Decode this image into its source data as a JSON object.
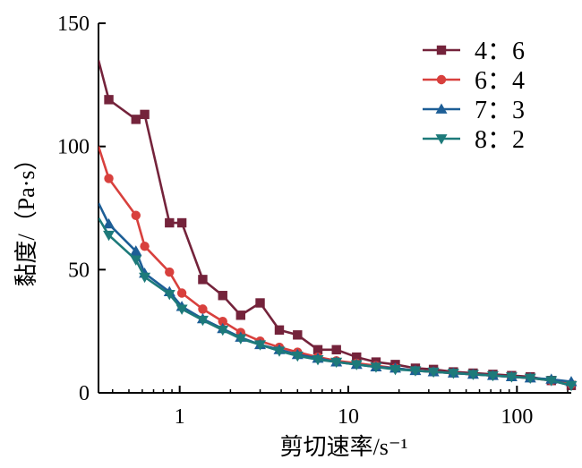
{
  "chart_data": {
    "type": "line",
    "xscale": "log",
    "xlim": [
      0.33,
      210
    ],
    "ylim": [
      0,
      150
    ],
    "xlabel": "剪切速率/s⁻¹",
    "ylabel": "黏度/（Pa·s）",
    "xticks": [
      {
        "value": 1,
        "label": "1"
      },
      {
        "value": 10,
        "label": "10"
      },
      {
        "value": 100,
        "label": "100"
      }
    ],
    "yticks": [
      {
        "value": 0,
        "label": "0"
      },
      {
        "value": 50,
        "label": "50"
      },
      {
        "value": 100,
        "label": "100"
      },
      {
        "value": 150,
        "label": "150"
      }
    ],
    "legend_position": "top-right",
    "series": [
      {
        "name": "4：6",
        "color": "#74233b",
        "marker": "square",
        "x": [
          0.33,
          0.38,
          0.55,
          0.62,
          0.87,
          1.03,
          1.37,
          1.8,
          2.3,
          3.0,
          3.9,
          5.0,
          6.6,
          8.5,
          11.2,
          14.6,
          19,
          25,
          32,
          42,
          55,
          72,
          93,
          120,
          160,
          210
        ],
        "y": [
          135,
          119,
          111,
          113,
          69,
          69,
          46,
          39.5,
          31.5,
          36.5,
          25.5,
          23.5,
          17.5,
          17.5,
          14.5,
          12.5,
          11.5,
          10,
          9.5,
          8.5,
          8,
          7.5,
          7,
          6.5,
          5,
          3
        ]
      },
      {
        "name": "6：4",
        "color": "#d8403d",
        "marker": "circle",
        "x": [
          0.33,
          0.38,
          0.55,
          0.62,
          0.87,
          1.03,
          1.37,
          1.8,
          2.3,
          3.0,
          3.9,
          5.0,
          6.6,
          8.5,
          11.2,
          14.6,
          19,
          25,
          32,
          42,
          55,
          72,
          93,
          120,
          160,
          210
        ],
        "y": [
          100,
          87,
          72,
          59.5,
          49,
          40.5,
          34,
          29,
          24.5,
          21,
          18.5,
          16.5,
          14.5,
          13,
          12,
          11,
          10,
          9,
          8.5,
          8,
          7.5,
          7,
          6.5,
          6,
          5,
          3.5
        ]
      },
      {
        "name": "7：3",
        "color": "#1d5e96",
        "marker": "triangle-up",
        "x": [
          0.33,
          0.38,
          0.55,
          0.62,
          0.87,
          1.03,
          1.37,
          1.8,
          2.3,
          3.0,
          3.9,
          5.0,
          6.6,
          8.5,
          11.2,
          14.6,
          19,
          25,
          32,
          42,
          55,
          72,
          93,
          120,
          160,
          210
        ],
        "y": [
          77,
          68.5,
          57.5,
          48.5,
          41,
          35,
          30,
          26,
          22.5,
          19.5,
          17.5,
          15.5,
          14,
          12.5,
          11.5,
          10.5,
          10,
          9,
          8.5,
          8,
          7.5,
          7,
          6.5,
          6,
          5.5,
          4.5
        ]
      },
      {
        "name": "8：2",
        "color": "#1d7a7a",
        "marker": "triangle-down",
        "x": [
          0.33,
          0.38,
          0.55,
          0.62,
          0.87,
          1.03,
          1.37,
          1.8,
          2.3,
          3.0,
          3.9,
          5.0,
          6.6,
          8.5,
          11.2,
          14.6,
          19,
          25,
          32,
          42,
          55,
          72,
          93,
          120,
          160,
          210
        ],
        "y": [
          71,
          64,
          54,
          47,
          40,
          34,
          29.5,
          25.5,
          22,
          19.5,
          17,
          15,
          13.5,
          12.5,
          11.5,
          10.5,
          9.5,
          9,
          8.5,
          8,
          7.5,
          7,
          6.5,
          6,
          5,
          3
        ]
      }
    ]
  }
}
